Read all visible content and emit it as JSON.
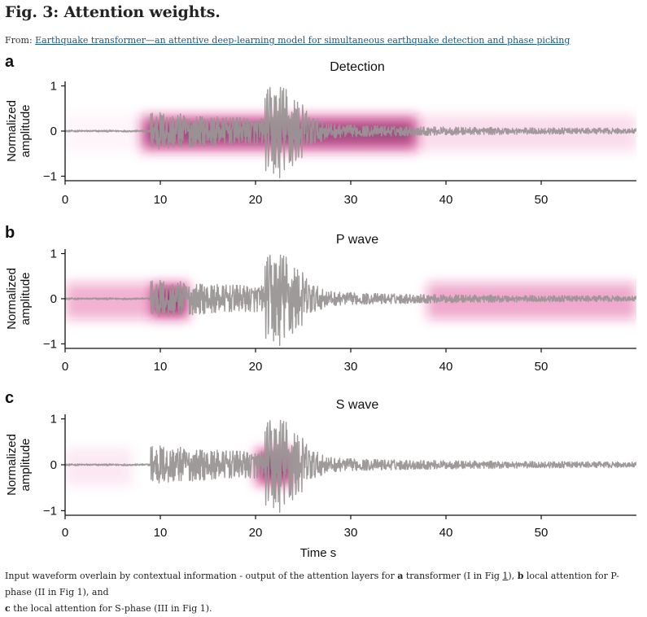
{
  "figure": {
    "title": "Fig. 3: Attention weights.",
    "from_prefix": "From: ",
    "from_link": "Earthquake transformer—an attentive deep-learning model for simultaneous earthquake detection and phase picking",
    "caption_1": "Input waveform overlain by contextual information - output of the attention layers for ",
    "caption_a": "a",
    "caption_2": " transformer (I in Fig ",
    "caption_link1": "1",
    "caption_3": "), ",
    "caption_b": "b",
    "caption_4": " local attention for P-phase (II in Fig 1), and",
    "caption_c": "c",
    "caption_5": " the local attention for S-phase (III in Fig 1)."
  },
  "colors": {
    "waveform": "#9a9595",
    "attention": "#d81b7a",
    "attention_core": "#3b1248"
  },
  "chart_data": [
    {
      "type": "line",
      "panel_letter": "a",
      "title": "Detection",
      "xlabel": "",
      "ylabel": "Normalized amplitude",
      "ylabel_lines": [
        "Normalized",
        "amplitude"
      ],
      "xlim": [
        0,
        60
      ],
      "ylim": [
        -1.1,
        1.1
      ],
      "x_ticks": [
        0,
        10,
        20,
        30,
        40,
        50
      ],
      "y_ticks": [
        1,
        0,
        -1
      ],
      "y_tick_labels": [
        "1",
        "0",
        "−1"
      ],
      "waveform": {
        "p_onset_s": 9,
        "s_onset_s": 21,
        "peak_amplitude": 1.0
      },
      "attention": [
        {
          "x_start": 8,
          "x_end": 37,
          "strength": 0.85
        },
        {
          "x_start": 37,
          "x_end": 60,
          "strength": 0.18
        },
        {
          "x_start": 0,
          "x_end": 8,
          "strength": 0.05
        }
      ]
    },
    {
      "type": "line",
      "panel_letter": "b",
      "title": "P wave",
      "xlabel": "",
      "ylabel": "Normalized amplitude",
      "ylabel_lines": [
        "Normalized",
        "amplitude"
      ],
      "xlim": [
        0,
        60
      ],
      "ylim": [
        -1.1,
        1.1
      ],
      "x_ticks": [
        0,
        10,
        20,
        30,
        40,
        50
      ],
      "y_ticks": [
        1,
        0,
        -1
      ],
      "y_tick_labels": [
        "1",
        "0",
        "−1"
      ],
      "waveform": {
        "p_onset_s": 9,
        "s_onset_s": 21,
        "peak_amplitude": 1.0
      },
      "attention": [
        {
          "x_start": 0,
          "x_end": 9,
          "strength": 0.45
        },
        {
          "x_start": 9,
          "x_end": 13,
          "strength": 0.95
        },
        {
          "x_start": 38,
          "x_end": 60,
          "strength": 0.5
        }
      ]
    },
    {
      "type": "line",
      "panel_letter": "c",
      "title": "S wave",
      "xlabel": "Time s",
      "ylabel": "Normalized amplitude",
      "ylabel_lines": [
        "Normalized",
        "amplitude"
      ],
      "xlim": [
        0,
        60
      ],
      "ylim": [
        -1.1,
        1.1
      ],
      "x_ticks": [
        0,
        10,
        20,
        30,
        40,
        50
      ],
      "y_ticks": [
        1,
        0,
        -1
      ],
      "y_tick_labels": [
        "1",
        "0",
        "−1"
      ],
      "waveform": {
        "p_onset_s": 9,
        "s_onset_s": 21,
        "peak_amplitude": 1.0
      },
      "attention": [
        {
          "x_start": 0,
          "x_end": 7,
          "strength": 0.12
        },
        {
          "x_start": 20,
          "x_end": 24,
          "strength": 0.95
        }
      ]
    }
  ]
}
